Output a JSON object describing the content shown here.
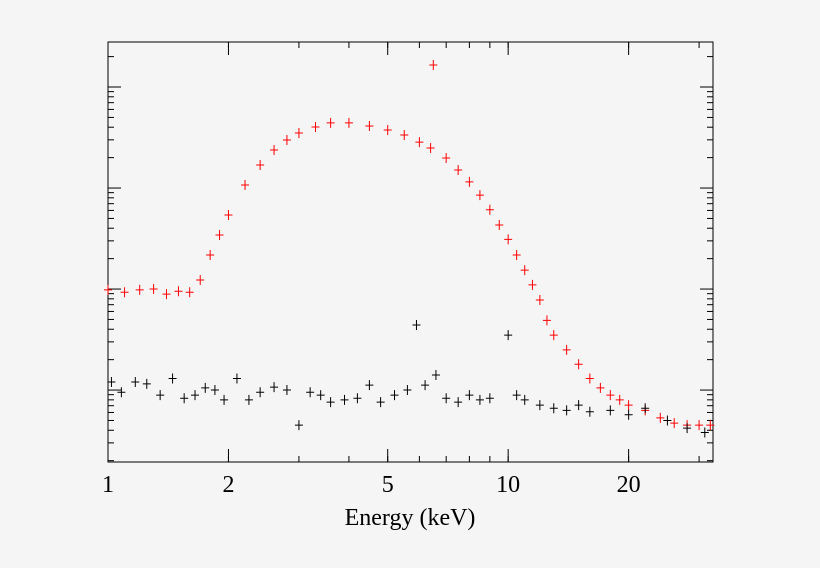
{
  "chart_data": {
    "type": "scatter",
    "x_label": "Energy (keV)",
    "log_x": true,
    "log_y": true,
    "xlim": [
      1,
      32.5
    ],
    "xticks": [
      1,
      2,
      5,
      10,
      20
    ],
    "ylim": [
      0.000194,
      2.79
    ],
    "yticks": [
      0.001,
      0.01,
      0.1,
      1
    ],
    "series": [
      {
        "color": "#ff0000",
        "x": [
          1.0,
          1.1,
          1.2,
          1.3,
          1.4,
          1.5,
          1.6,
          1.7,
          1.8,
          1.9,
          2.0,
          2.2,
          2.4,
          2.6,
          2.8,
          3.0,
          3.3,
          3.6,
          4.0,
          4.5,
          5.0,
          5.5,
          6.0,
          6.4,
          6.5,
          7.0,
          7.5,
          8.0,
          8.5,
          9.0,
          9.5,
          10,
          10.5,
          11,
          11.5,
          12,
          12.5,
          13,
          14,
          15,
          16,
          17,
          18,
          19,
          20,
          22,
          24,
          26,
          28,
          30,
          32
        ],
        "values": [
          0.0098,
          0.0093,
          0.0098,
          0.01,
          0.0089,
          0.0095,
          0.0093,
          0.0123,
          0.0217,
          0.0343,
          0.054,
          0.107,
          0.169,
          0.238,
          0.299,
          0.351,
          0.402,
          0.441,
          0.441,
          0.411,
          0.375,
          0.335,
          0.285,
          0.249,
          1.65,
          0.198,
          0.151,
          0.115,
          0.085,
          0.061,
          0.043,
          0.031,
          0.0217,
          0.0154,
          0.011,
          0.0078,
          0.0049,
          0.0035,
          0.0025,
          0.0018,
          0.0013,
          0.00105,
          0.00089,
          0.0008,
          0.00071,
          0.00063,
          0.00053,
          0.00047,
          0.00045,
          0.00045,
          0.00045
        ]
      },
      {
        "color": "#000000",
        "x": [
          1.02,
          1.08,
          1.17,
          1.25,
          1.35,
          1.45,
          1.55,
          1.65,
          1.75,
          1.85,
          1.95,
          2.1,
          2.25,
          2.4,
          2.6,
          2.8,
          3.0,
          3.2,
          3.4,
          3.6,
          3.9,
          4.2,
          4.5,
          4.8,
          5.2,
          5.6,
          5.9,
          6.2,
          6.6,
          7.0,
          7.5,
          8.0,
          8.5,
          9.0,
          10.0,
          10.5,
          11,
          12,
          13,
          14,
          15,
          16,
          18,
          20,
          22,
          25,
          28,
          31
        ],
        "values": [
          0.0012,
          0.00095,
          0.0012,
          0.00115,
          0.00089,
          0.0013,
          0.00083,
          0.00089,
          0.00105,
          0.001,
          0.0008,
          0.0013,
          0.0008,
          0.00095,
          0.00107,
          0.001,
          0.00045,
          0.00095,
          0.00089,
          0.00076,
          0.0008,
          0.00083,
          0.00112,
          0.00076,
          0.00089,
          0.001,
          0.0044,
          0.00112,
          0.00141,
          0.00083,
          0.00076,
          0.00089,
          0.0008,
          0.00083,
          0.0035,
          0.00089,
          0.0008,
          0.00071,
          0.00066,
          0.00063,
          0.00071,
          0.00061,
          0.00063,
          0.00057,
          0.00066,
          0.0005,
          0.00042,
          0.00038
        ]
      }
    ]
  }
}
